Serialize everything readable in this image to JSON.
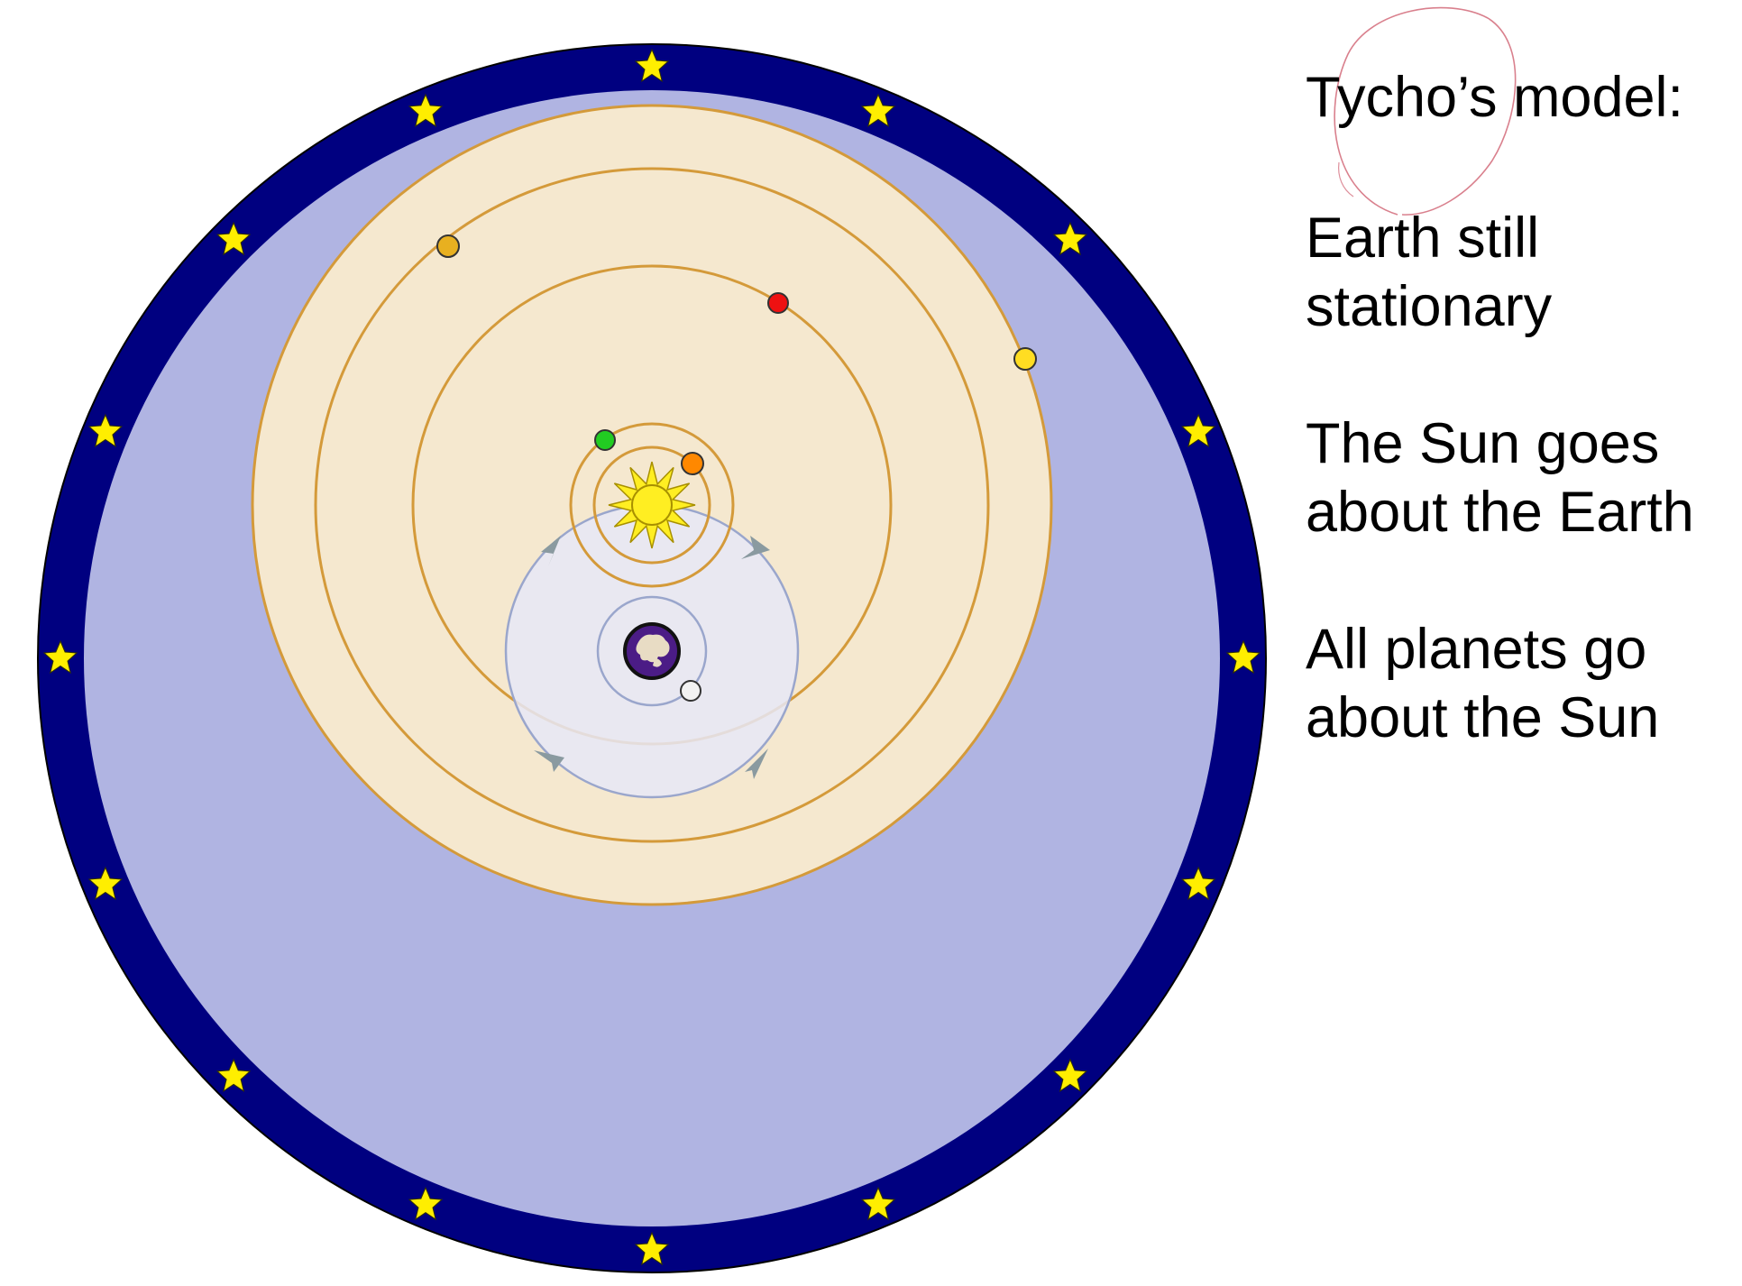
{
  "caption": {
    "heading": "Tycho’s model:",
    "points": [
      [
        "Earth still",
        "stationary"
      ],
      [
        "The Sun goes",
        "about the Earth"
      ],
      [
        "All planets go",
        "about the Sun"
      ]
    ]
  },
  "colors": {
    "stars_band": "#000080",
    "star": "#ffee00",
    "sphere_fill": "#b0b4e2",
    "planet_orbits_fill": "#f5e8cf",
    "orbit_line": "#d49a3a",
    "sun_path_fill": "#e6e8f7",
    "sun_path_line": "#9aa6cc",
    "arrow": "#8a9aa0",
    "sun": "#ffee22",
    "earth": "#4b1c86",
    "moon": "#f2f2f2",
    "mercury": "#22cc22",
    "venus": "#ff8800",
    "mars": "#ee1111",
    "jupiter": "#ffdd22",
    "saturn": "#e8b020",
    "scribble": "#d06070"
  }
}
